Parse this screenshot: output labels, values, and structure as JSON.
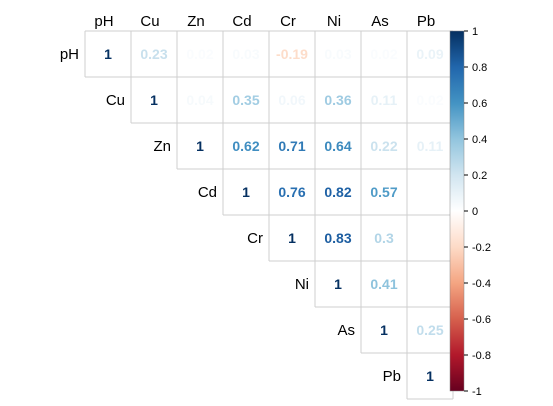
{
  "chart_data": {
    "type": "heatmap",
    "variables": [
      "pH",
      "Cu",
      "Zn",
      "Cd",
      "Cr",
      "Ni",
      "As",
      "Pb"
    ],
    "matrix_upper": [
      [
        1,
        0.23,
        0.02,
        0.03,
        -0.19,
        0.03,
        0.02,
        0.09
      ],
      [
        null,
        1,
        0.04,
        0.35,
        0.06,
        0.36,
        0.11,
        0.02
      ],
      [
        null,
        null,
        1,
        0.62,
        0.71,
        0.64,
        0.22,
        0.11
      ],
      [
        null,
        null,
        null,
        1,
        0.76,
        0.82,
        0.57,
        null
      ],
      [
        null,
        null,
        null,
        null,
        1,
        0.83,
        0.3,
        null
      ],
      [
        null,
        null,
        null,
        null,
        null,
        1,
        0.41,
        null
      ],
      [
        null,
        null,
        null,
        null,
        null,
        null,
        1,
        0.25
      ],
      [
        null,
        null,
        null,
        null,
        null,
        null,
        null,
        1
      ]
    ],
    "colorbar": {
      "ticks": [
        "1",
        "0.8",
        "0.6",
        "0.4",
        "0.2",
        "0",
        "-0.2",
        "-0.4",
        "-0.6",
        "-0.8",
        "-1"
      ],
      "range": [
        -1,
        1
      ],
      "colors": [
        "#67001F",
        "#B2182B",
        "#D6604D",
        "#F4A582",
        "#FDDBC7",
        "#FFFFFF",
        "#D1E5F0",
        "#92C5DE",
        "#4393C3",
        "#2166AC",
        "#053061"
      ]
    },
    "title": "",
    "xlabel": "",
    "ylabel": ""
  }
}
